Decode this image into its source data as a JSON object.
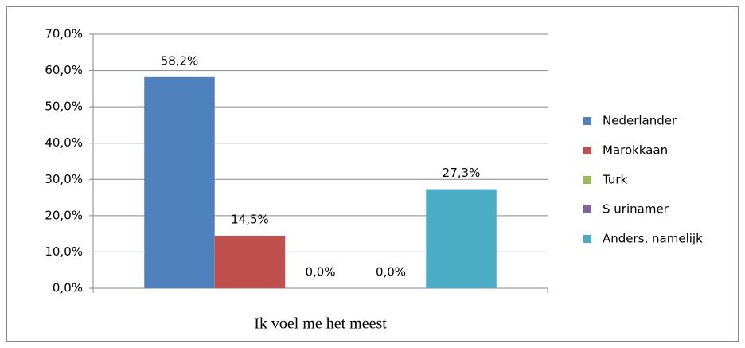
{
  "chart_data": {
    "type": "bar",
    "categories": [
      "Ik voel me het meest"
    ],
    "series": [
      {
        "name": "Nederlander",
        "color": "#4f81bd",
        "values": [
          58.2
        ],
        "value_labels": [
          "58,2%"
        ]
      },
      {
        "name": "Marokkaan",
        "color": "#c0504d",
        "values": [
          14.5
        ],
        "value_labels": [
          "14,5%"
        ]
      },
      {
        "name": "Turk",
        "color": "#9bbb59",
        "values": [
          0
        ],
        "value_labels": [
          "0,0%"
        ]
      },
      {
        "name": "S urinamer",
        "color": "#8064a2",
        "values": [
          0
        ],
        "value_labels": [
          "0,0%"
        ]
      },
      {
        "name": "Anders, namelijk",
        "color": "#4bacc6",
        "values": [
          27.3
        ],
        "value_labels": [
          "27,3%"
        ]
      }
    ],
    "ylim": [
      0,
      70
    ],
    "yticks": [
      {
        "value": 0,
        "label": "0,0%"
      },
      {
        "value": 10,
        "label": "10,0%"
      },
      {
        "value": 20,
        "label": "20,0%"
      },
      {
        "value": 30,
        "label": "30,0%"
      },
      {
        "value": 40,
        "label": "40,0%"
      },
      {
        "value": 50,
        "label": "50,0%"
      },
      {
        "value": 60,
        "label": "60,0%"
      },
      {
        "value": 70,
        "label": "70,0%"
      }
    ],
    "grid": true,
    "legend": "right"
  }
}
